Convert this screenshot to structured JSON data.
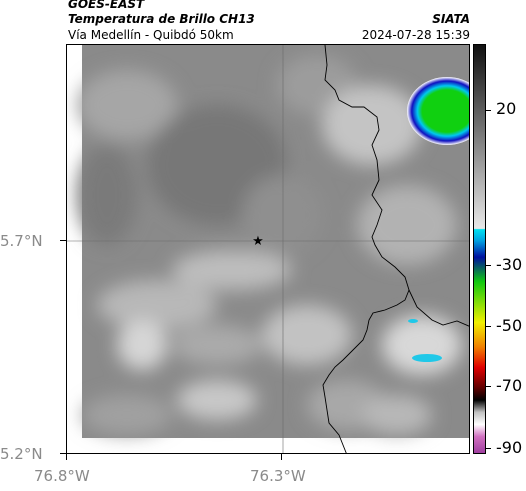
{
  "header": {
    "title": "GOES-EAST",
    "product": "Temperatura de Brillo CH13",
    "region": "Vía Medellín - Quibdó 50km",
    "organization": "SIATA",
    "datetime": "2024-07-28 15:39"
  },
  "axes": {
    "lat_ticks": [
      "5.7°N",
      "5.2°N"
    ],
    "lon_ticks": [
      "76.8°W",
      "76.3°W"
    ]
  },
  "colorbar": {
    "tick_labels": [
      "20",
      "-30",
      "-50",
      "-70",
      "-90"
    ],
    "colors": {
      "grey_dark": "#1e1e1e",
      "grey_light": "#d8d8d8",
      "cyan": "#00c8e0",
      "blue": "#1010a0",
      "green": "#10c810",
      "yellow": "#f0f000",
      "red": "#e01010",
      "black": "#000000",
      "magenta": "#b040b0"
    }
  },
  "map": {
    "marker_icon": "star-icon",
    "background_color": "#8a8a8a",
    "border_color": "#000000",
    "storm_colors": [
      "#00e000",
      "#00c8f0",
      "#1010c0"
    ]
  }
}
